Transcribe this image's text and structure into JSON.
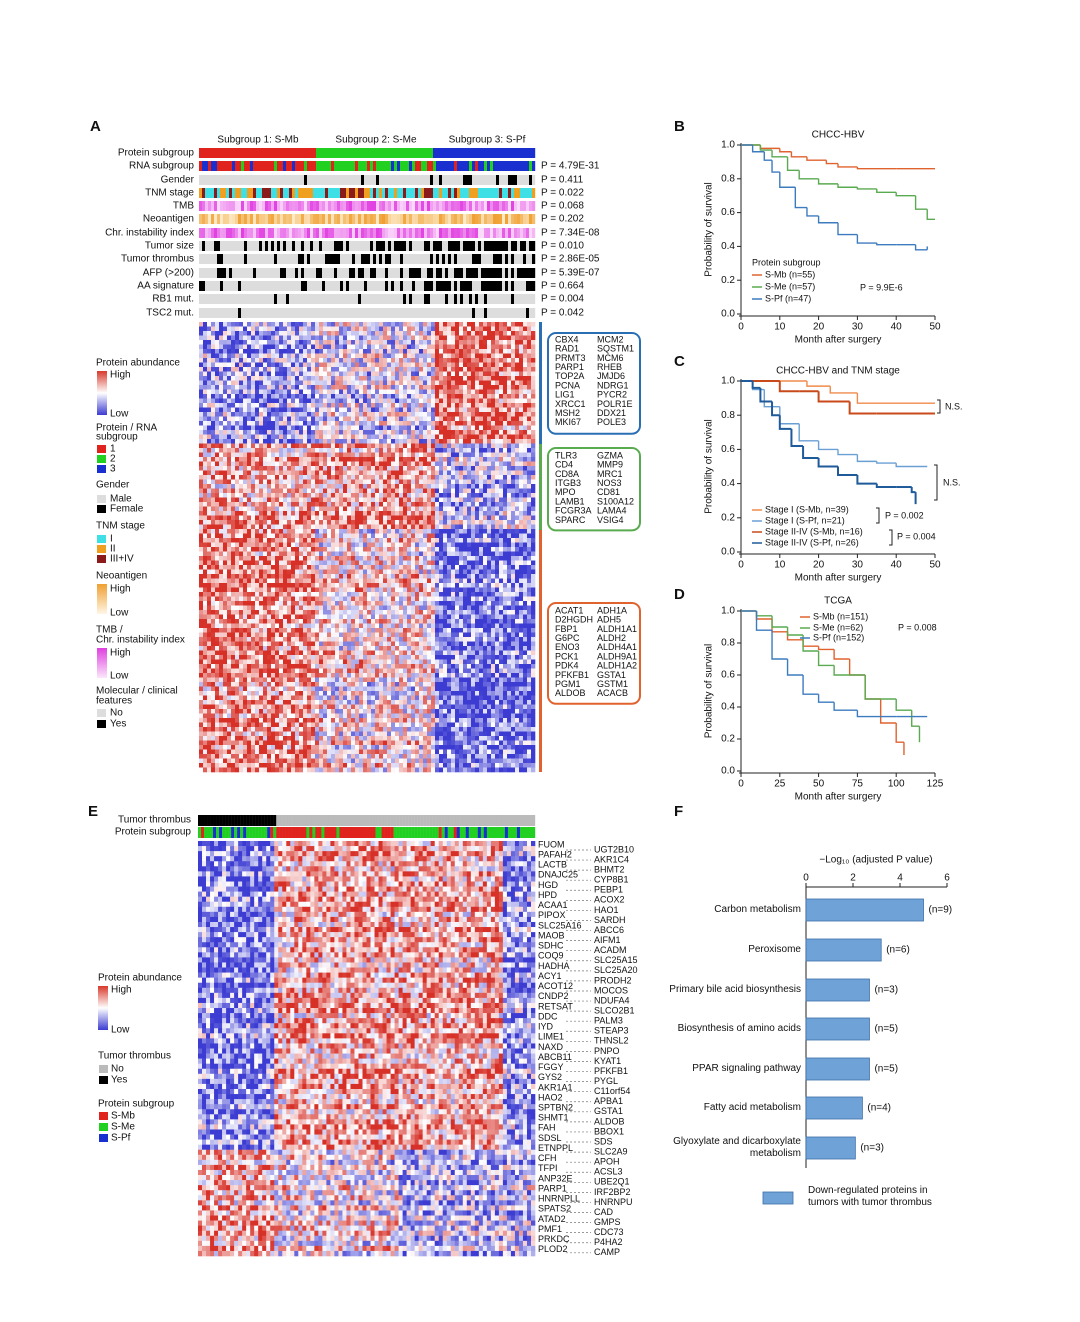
{
  "panel_labels": [
    "A",
    "B",
    "C",
    "D",
    "E",
    "F"
  ],
  "heatmap_a": {
    "subgroup_headers": [
      "Subgroup 1: S-Mb",
      "Subgroup 2: S-Me",
      "Subgroup 3: S-Pf"
    ],
    "track_names": [
      "Protein subgroup",
      "RNA subgroup",
      "Gender",
      "TNM stage",
      "TMB",
      "Neoantigen",
      "Chr. instability index",
      "Tumor size",
      "Tumor thrombus",
      "AFP (>200)",
      "AA signature",
      "RB1 mut.",
      "TSC2 mut."
    ],
    "p_values": [
      "P = 4.79E-31",
      "P = 0.411",
      "P = 0.022",
      "P = 0.068",
      "P = 0.202",
      "P = 7.34E-08",
      "P = 0.010",
      "P = 2.86E-05",
      "P = 5.39E-07",
      "P = 0.664",
      "P = 0.004",
      "P = 0.042"
    ],
    "gene_boxes": [
      [
        [
          "CBX4",
          "MCM2"
        ],
        [
          "RAD1",
          "SQSTM1"
        ],
        [
          "PRMT3",
          "MCM6"
        ],
        [
          "PARP1",
          "RHEB"
        ],
        [
          "TOP2A",
          "JMJD6"
        ],
        [
          "PCNA",
          "NDRG1"
        ],
        [
          "LIG1",
          "PYCR2"
        ],
        [
          "XRCC1",
          "POLR1E"
        ],
        [
          "MSH2",
          "DDX21"
        ],
        [
          "MKI67",
          "POLE3"
        ]
      ],
      [
        [
          "TLR3",
          "GZMA"
        ],
        [
          "CD4",
          "MMP9"
        ],
        [
          "CD8A",
          "MRC1"
        ],
        [
          "ITGB3",
          "NOS3"
        ],
        [
          "MPO",
          "CD81"
        ],
        [
          "LAMB1",
          "S100A12"
        ],
        [
          "FCGR3A",
          "LAMA4"
        ],
        [
          "SPARC",
          "VSIG4"
        ]
      ],
      [
        [
          "ACAT1",
          "ADH1A"
        ],
        [
          "D2HGDH",
          "ADH5"
        ],
        [
          "FBP1",
          "ALDH1A1"
        ],
        [
          "G6PC",
          "ALDH2"
        ],
        [
          "ENO3",
          "ALDH4A1"
        ],
        [
          "PCK1",
          "ALDH9A1"
        ],
        [
          "PDK4",
          "ALDH1A2"
        ],
        [
          "PFKFB1",
          "GSTA1"
        ],
        [
          "PGM1",
          "GSTM1"
        ],
        [
          "ALDOB",
          "ACACB"
        ]
      ]
    ],
    "legend": [
      "Protein abundance",
      "High",
      "Low",
      "Protein / RNA",
      "subgroup",
      "1",
      "2",
      "3",
      "Gender",
      "Male",
      "Female",
      "TNM stage",
      "I",
      "II",
      "III+IV",
      "Neoantigen",
      "High",
      "Low",
      "TMB /",
      "Chr. instability index",
      "High",
      "Low",
      "Molecular / clinical",
      "features",
      "No",
      "Yes"
    ]
  },
  "heatmap_e": {
    "track_names": [
      "Tumor thrombus",
      "Protein subgroup"
    ],
    "genes_left": [
      "FUOM",
      "PAFAH2",
      "LACTB",
      "DNAJC25",
      "HGD",
      "HPD",
      "ACAA1",
      "PIPOX",
      "SLC25A16",
      "MAOB",
      "SDHC",
      "COQ9",
      "HADHA",
      "ACY1",
      "ACOT12",
      "CNDP2",
      "RETSAT",
      "DDC",
      "IYD",
      "LIME1",
      "NAXD",
      "ABCB11",
      "FGGY",
      "GYS2",
      "AKR1A1",
      "HAO2",
      "SPTBN2",
      "SHMT1",
      "FAH",
      "SDSL",
      "ETNPPL",
      "CFH",
      "TFPI",
      "ANP32E",
      "PARP1",
      "HNRNPLL",
      "SPATS2",
      "ATAD2",
      "PMF1",
      "PRKDC",
      "PLOD2"
    ],
    "genes_right": [
      "UGT2B10",
      "AKR1C4",
      "BHMT2",
      "CYP8B1",
      "PEBP1",
      "ACOX2",
      "HAO1",
      "SARDH",
      "ABCC6",
      "AIFM1",
      "ACADM",
      "SLC25A15",
      "SLC25A20",
      "PRODH2",
      "MOCOS",
      "NDUFA4",
      "SLCO2B1",
      "PALM3",
      "STEAP3",
      "THNSL2",
      "PNPO",
      "KYAT1",
      "PFKFB1",
      "PYGL",
      "C11orf54",
      "APBA1",
      "GSTA1",
      "ALDOB",
      "BBOX1",
      "SDS",
      "SLC2A9",
      "APOH",
      "ACSL3",
      "UBE2Q1",
      "IRF2BP2",
      "HNRNPU",
      "CAD",
      "GMPS",
      "CDC73",
      "P4HA2",
      "CAMP"
    ],
    "legend": [
      "Protein abundance",
      "High",
      "Low",
      "Tumor thrombus",
      "No",
      "Yes",
      "Protein subgroup",
      "S-Mb",
      "S-Me",
      "S-Pf"
    ]
  },
  "chart_data": [
    {
      "type": "line",
      "title": "CHCC-HBV",
      "x_label": "Month after surgery",
      "y_label": "Probability of survival",
      "legend_title": "Protein subgroup",
      "annotations": [
        "P = 9.9E-6"
      ],
      "xlim": [
        0,
        50
      ],
      "xticks": [
        0,
        10,
        20,
        30,
        40,
        50
      ],
      "ylim": [
        0,
        1
      ],
      "yticks": [
        {
          "value": 0,
          "label": "0.0"
        },
        0.2,
        0.4,
        0.6,
        0.8,
        {
          "value": 1,
          "label": "1.0"
        }
      ],
      "series": [
        {
          "name": "S-Mb (n=55)",
          "color": "#e0622f",
          "x": [
            0,
            5,
            10,
            13,
            17,
            22,
            25,
            30,
            40,
            50
          ],
          "values": [
            1,
            0.98,
            0.96,
            0.93,
            0.91,
            0.89,
            0.87,
            0.86,
            0.86,
            0.86
          ]
        },
        {
          "name": "S-Me (n=57)",
          "color": "#5aaa50",
          "x": [
            0,
            5,
            8,
            12,
            15,
            20,
            25,
            30,
            35,
            40,
            45,
            48,
            50
          ],
          "values": [
            1,
            0.97,
            0.93,
            0.85,
            0.8,
            0.77,
            0.75,
            0.74,
            0.72,
            0.7,
            0.62,
            0.56,
            0.56
          ]
        },
        {
          "name": "S-Pf (n=47)",
          "color": "#3d7bbf",
          "x": [
            0,
            3,
            6,
            8,
            10,
            14,
            17,
            20,
            25,
            30,
            35,
            40,
            45,
            48
          ],
          "values": [
            1,
            0.96,
            0.91,
            0.84,
            0.75,
            0.63,
            0.58,
            0.54,
            0.47,
            0.42,
            0.41,
            0.41,
            0.38,
            0.4
          ]
        }
      ]
    },
    {
      "type": "line",
      "title": "CHCC-HBV and TNM stage",
      "x_label": "Month after surgery",
      "y_label": "Probability of survival",
      "annotations": [
        "P = 0.002",
        "P = 0.004",
        "N.S.",
        "N.S."
      ],
      "xlim": [
        0,
        50
      ],
      "xticks": [
        0,
        10,
        20,
        30,
        40,
        50
      ],
      "ylim": [
        0,
        1
      ],
      "yticks": [
        {
          "value": 0,
          "label": "0.0"
        },
        0.2,
        0.4,
        0.6,
        0.8,
        {
          "value": 1,
          "label": "1.0"
        }
      ],
      "series": [
        {
          "name": "Stage I (S-Mb, n=39)",
          "color": "#f08a4b",
          "x": [
            0,
            10,
            17,
            23,
            30,
            50
          ],
          "values": [
            1,
            1,
            0.97,
            0.93,
            0.87,
            0.87
          ]
        },
        {
          "name": "Stage I (S-Pf, n=21)",
          "color": "#6a9fd4",
          "x": [
            0,
            3,
            6,
            10,
            15,
            20,
            25,
            30,
            35,
            40,
            48
          ],
          "values": [
            1,
            0.95,
            0.85,
            0.75,
            0.65,
            0.6,
            0.57,
            0.53,
            0.52,
            0.5,
            0.5
          ]
        },
        {
          "name": "Stage II-IV (S-Mb, n=16)",
          "color": "#c84a1b",
          "x": [
            0,
            10,
            15,
            20,
            28,
            35,
            50
          ],
          "values": [
            1,
            0.94,
            0.94,
            0.88,
            0.81,
            0.81,
            0.81
          ]
        },
        {
          "name": "Stage II-IV (S-Pf, n=26)",
          "color": "#1f5a9a",
          "x": [
            0,
            3,
            5,
            8,
            10,
            13,
            16,
            20,
            25,
            30,
            35,
            40,
            44,
            45
          ],
          "values": [
            1,
            0.96,
            0.88,
            0.8,
            0.72,
            0.62,
            0.55,
            0.5,
            0.45,
            0.4,
            0.38,
            0.38,
            0.35,
            0.28
          ]
        }
      ]
    },
    {
      "type": "line",
      "title": "TCGA",
      "x_label": "Month after surgery",
      "y_label": "Probability of survival",
      "annotations": [
        "P = 0.008"
      ],
      "xlim": [
        0,
        125
      ],
      "xticks": [
        0,
        25,
        50,
        75,
        100,
        125
      ],
      "ylim": [
        0,
        1
      ],
      "yticks": [
        {
          "value": 0,
          "label": "0.0"
        },
        0.2,
        0.4,
        0.6,
        0.8,
        {
          "value": 1,
          "label": "1.0"
        }
      ],
      "series": [
        {
          "name": "S-Mb (n=151)",
          "color": "#e0622f",
          "x": [
            0,
            10,
            20,
            30,
            40,
            50,
            60,
            70,
            80,
            90,
            100,
            105
          ],
          "values": [
            1,
            0.95,
            0.87,
            0.82,
            0.78,
            0.76,
            0.7,
            0.6,
            0.45,
            0.3,
            0.18,
            0.1
          ]
        },
        {
          "name": "S-Me (n=62)",
          "color": "#5aaa50",
          "x": [
            0,
            10,
            20,
            30,
            40,
            50,
            60,
            80,
            100,
            110,
            115
          ],
          "values": [
            1,
            0.97,
            0.9,
            0.85,
            0.75,
            0.66,
            0.6,
            0.45,
            0.38,
            0.28,
            0.18
          ]
        },
        {
          "name": "S-Pf (n=152)",
          "color": "#3d7bbf",
          "x": [
            0,
            10,
            20,
            30,
            40,
            50,
            60,
            75,
            100,
            120
          ],
          "values": [
            1,
            0.88,
            0.7,
            0.6,
            0.48,
            0.43,
            0.38,
            0.34,
            0.34,
            0.34
          ]
        }
      ]
    },
    {
      "type": "hbar",
      "x_label": "−Log₁₀ (adjusted P value)",
      "categories": [
        "Carbon metabolism",
        "Peroxisome",
        "Primary bile acid biosynthesis",
        "Biosynthesis of amino acids",
        "PPAR signaling pathway",
        "Fatty acid metabolism",
        "Glyoxylate and dicarboxylate metabolism"
      ],
      "annotations": [
        "(n=9)",
        "(n=6)",
        "(n=3)",
        "(n=5)",
        "(n=5)",
        "(n=4)",
        "(n=3)"
      ],
      "xlim": [
        0,
        6
      ],
      "xticks": [
        0,
        2,
        4,
        6
      ],
      "series": [
        {
          "name": "Down-regulated proteins in tumors with tumor thrombus",
          "color": "#6fa3d8",
          "values": [
            5.0,
            3.2,
            2.7,
            2.7,
            2.7,
            2.4,
            2.1
          ]
        }
      ]
    }
  ]
}
